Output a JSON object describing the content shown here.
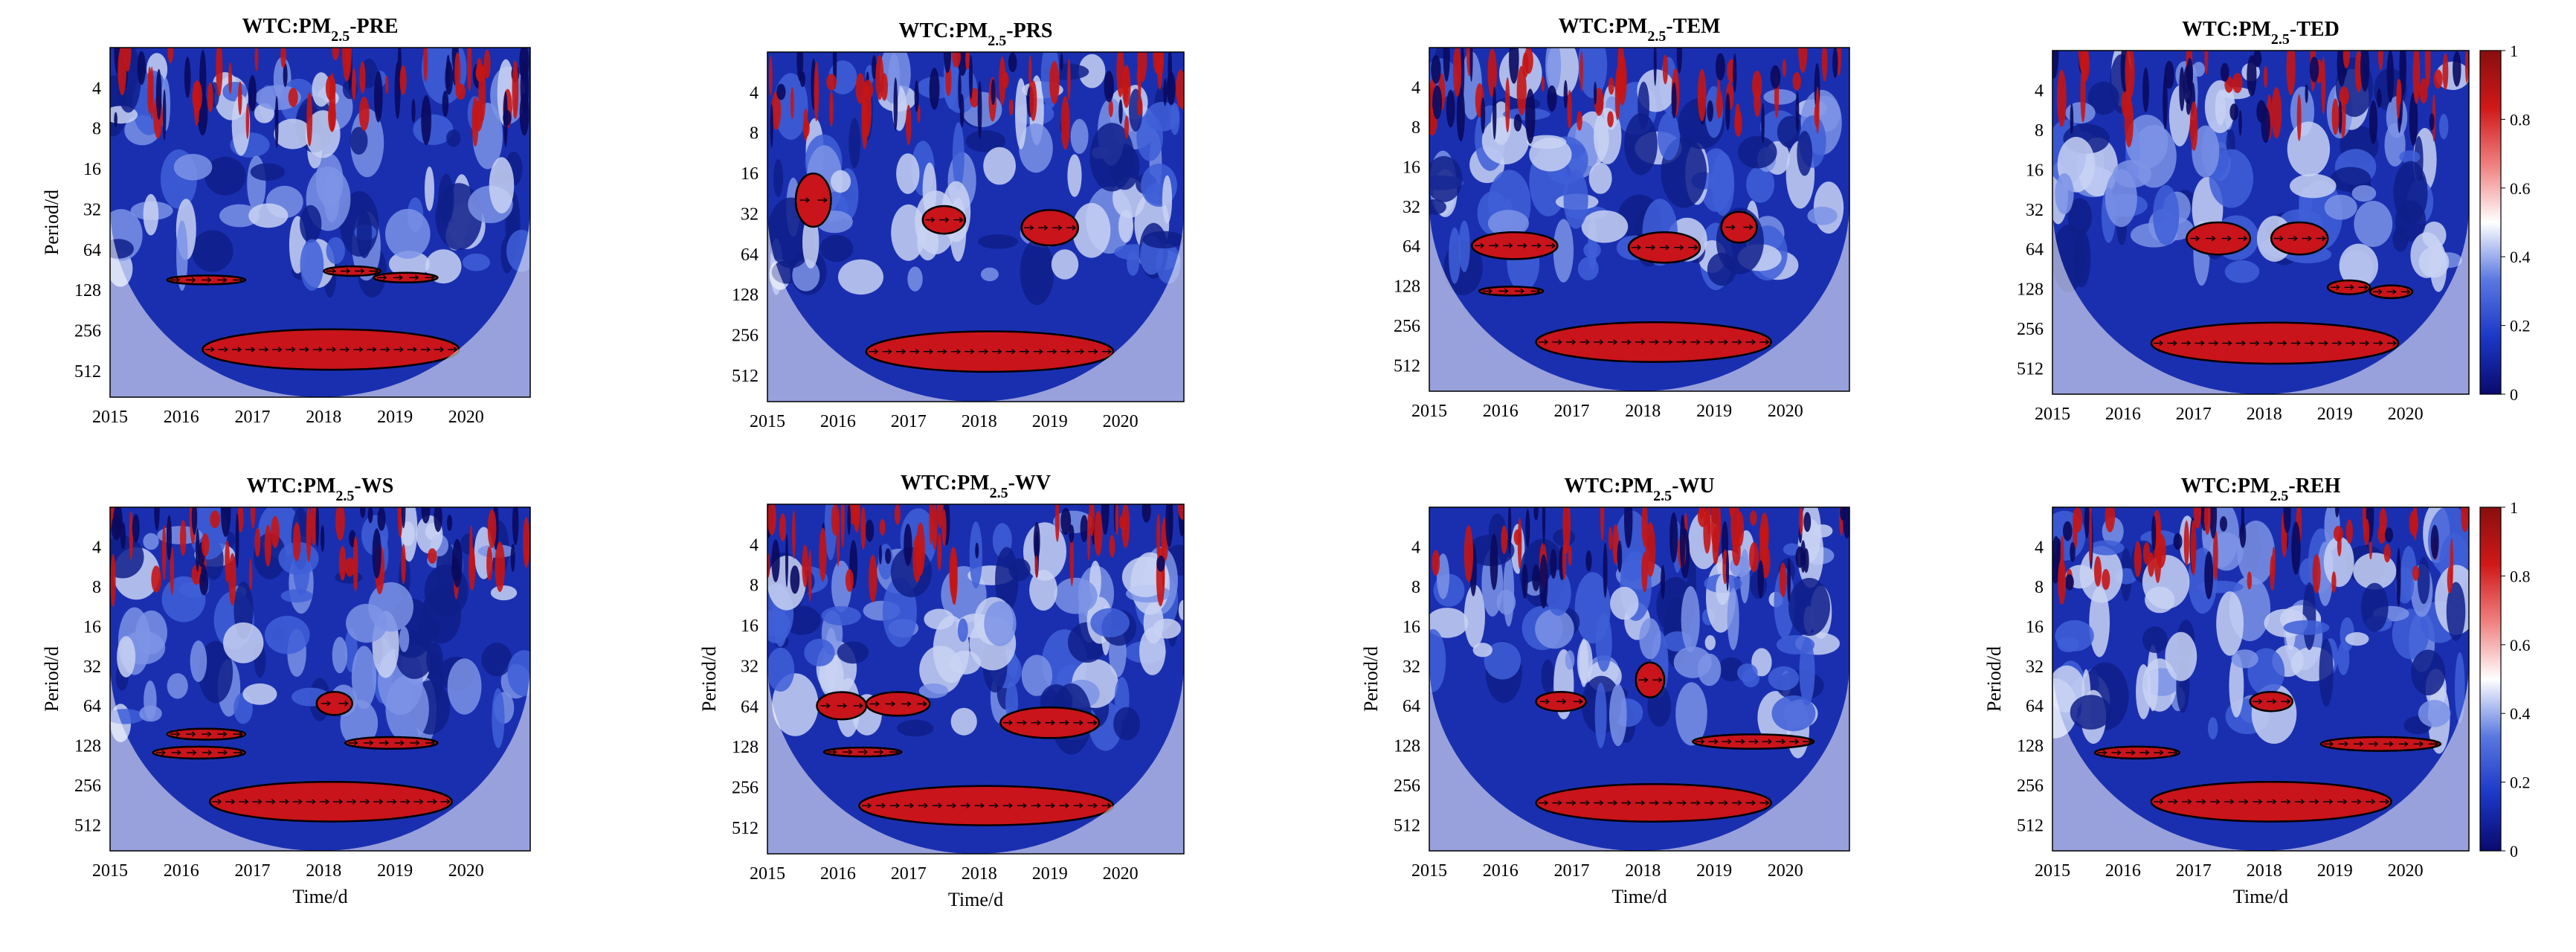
{
  "chart_data": [
    {
      "type": "heatmap",
      "title": "WTC:PM",
      "title_sub": "2.5",
      "title_suffix": "-PRE",
      "ylabel": "Period/d",
      "xlabel": "",
      "x_ticks": [
        "2015",
        "2016",
        "2017",
        "2018",
        "2019",
        "2020"
      ],
      "y_ticks": [
        "4",
        "8",
        "16",
        "32",
        "64",
        "128",
        "256",
        "512"
      ],
      "xlim": [
        2015,
        2020.9
      ],
      "ylim": [
        2,
        800
      ],
      "y_scale": "log2",
      "y_reversed": true,
      "significant_regions": [
        {
          "x": [
            2015.8,
            2016.9
          ],
          "y": [
            100,
            115
          ]
        },
        {
          "x": [
            2018.0,
            2018.8
          ],
          "y": [
            85,
            100
          ]
        },
        {
          "x": [
            2018.7,
            2019.6
          ],
          "y": [
            95,
            112
          ]
        },
        {
          "x": [
            2016.3,
            2019.9
          ],
          "y": [
            250,
            500
          ]
        }
      ]
    },
    {
      "type": "heatmap",
      "title": "WTC:PM",
      "title_sub": "2.5",
      "title_suffix": "-PRS",
      "ylabel": "",
      "xlabel": "",
      "x_ticks": [
        "2015",
        "2016",
        "2017",
        "2018",
        "2019",
        "2020"
      ],
      "y_ticks": [
        "4",
        "8",
        "16",
        "32",
        "64",
        "128",
        "256",
        "512"
      ],
      "xlim": [
        2015,
        2020.9
      ],
      "ylim": [
        2,
        800
      ],
      "y_scale": "log2",
      "y_reversed": true,
      "significant_regions": [
        {
          "x": [
            2015.4,
            2015.9
          ],
          "y": [
            16,
            40
          ]
        },
        {
          "x": [
            2017.2,
            2017.8
          ],
          "y": [
            28,
            45
          ]
        },
        {
          "x": [
            2018.6,
            2019.4
          ],
          "y": [
            30,
            55
          ]
        },
        {
          "x": [
            2016.4,
            2019.9
          ],
          "y": [
            240,
            480
          ]
        }
      ]
    },
    {
      "type": "heatmap",
      "title": "WTC:PM",
      "title_sub": "2.5",
      "title_suffix": "-TEM",
      "ylabel": "",
      "xlabel": "",
      "x_ticks": [
        "2015",
        "2016",
        "2017",
        "2018",
        "2019",
        "2020"
      ],
      "y_ticks": [
        "4",
        "8",
        "16",
        "32",
        "64",
        "128",
        "256",
        "512"
      ],
      "xlim": [
        2015,
        2020.9
      ],
      "ylim": [
        2,
        800
      ],
      "y_scale": "log2",
      "y_reversed": true,
      "significant_regions": [
        {
          "x": [
            2015.6,
            2016.8
          ],
          "y": [
            50,
            80
          ]
        },
        {
          "x": [
            2017.8,
            2018.8
          ],
          "y": [
            50,
            85
          ]
        },
        {
          "x": [
            2019.1,
            2019.6
          ],
          "y": [
            35,
            60
          ]
        },
        {
          "x": [
            2015.7,
            2016.6
          ],
          "y": [
            130,
            150
          ]
        },
        {
          "x": [
            2016.5,
            2019.8
          ],
          "y": [
            240,
            480
          ]
        }
      ]
    },
    {
      "type": "heatmap",
      "title": "WTC:PM",
      "title_sub": "2.5",
      "title_suffix": "-TED",
      "ylabel": "",
      "xlabel": "",
      "x_ticks": [
        "2015",
        "2016",
        "2017",
        "2018",
        "2019",
        "2020"
      ],
      "y_ticks": [
        "4",
        "8",
        "16",
        "32",
        "64",
        "128",
        "256",
        "512"
      ],
      "xlim": [
        2015,
        2020.9
      ],
      "ylim": [
        2,
        800
      ],
      "y_scale": "log2",
      "y_reversed": true,
      "significant_regions": [
        {
          "x": [
            2016.9,
            2017.8
          ],
          "y": [
            40,
            70
          ]
        },
        {
          "x": [
            2018.1,
            2018.9
          ],
          "y": [
            40,
            70
          ]
        },
        {
          "x": [
            2018.9,
            2019.5
          ],
          "y": [
            110,
            140
          ]
        },
        {
          "x": [
            2019.5,
            2020.1
          ],
          "y": [
            120,
            150
          ]
        },
        {
          "x": [
            2016.4,
            2019.9
          ],
          "y": [
            230,
            470
          ]
        }
      ]
    },
    {
      "type": "heatmap",
      "title": "WTC:PM",
      "title_sub": "2.5",
      "title_suffix": "-WS",
      "ylabel": "Period/d",
      "xlabel": "Time/d",
      "x_ticks": [
        "2015",
        "2016",
        "2017",
        "2018",
        "2019",
        "2020"
      ],
      "y_ticks": [
        "4",
        "8",
        "16",
        "32",
        "64",
        "128",
        "256",
        "512"
      ],
      "xlim": [
        2015,
        2020.9
      ],
      "ylim": [
        2,
        800
      ],
      "y_scale": "log2",
      "y_reversed": true,
      "significant_regions": [
        {
          "x": [
            2015.6,
            2016.9
          ],
          "y": [
            130,
            160
          ]
        },
        {
          "x": [
            2015.8,
            2016.9
          ],
          "y": [
            95,
            115
          ]
        },
        {
          "x": [
            2017.9,
            2018.4
          ],
          "y": [
            50,
            75
          ]
        },
        {
          "x": [
            2018.3,
            2019.6
          ],
          "y": [
            110,
            135
          ]
        },
        {
          "x": [
            2016.4,
            2019.8
          ],
          "y": [
            240,
            480
          ]
        }
      ]
    },
    {
      "type": "heatmap",
      "title": "WTC:PM",
      "title_sub": "2.5",
      "title_suffix": "-WV",
      "ylabel": "Period/d",
      "xlabel": "Time/d",
      "x_ticks": [
        "2015",
        "2016",
        "2017",
        "2018",
        "2019",
        "2020"
      ],
      "y_ticks": [
        "4",
        "8",
        "16",
        "32",
        "64",
        "128",
        "256",
        "512"
      ],
      "xlim": [
        2015,
        2020.9
      ],
      "ylim": [
        2,
        800
      ],
      "y_scale": "log2",
      "y_reversed": true,
      "significant_regions": [
        {
          "x": [
            2015.7,
            2016.4
          ],
          "y": [
            50,
            80
          ]
        },
        {
          "x": [
            2016.4,
            2017.3
          ],
          "y": [
            50,
            75
          ]
        },
        {
          "x": [
            2018.3,
            2019.7
          ],
          "y": [
            65,
            110
          ]
        },
        {
          "x": [
            2015.8,
            2016.9
          ],
          "y": [
            130,
            150
          ]
        },
        {
          "x": [
            2016.3,
            2019.9
          ],
          "y": [
            250,
            490
          ]
        }
      ]
    },
    {
      "type": "heatmap",
      "title": "WTC:PM",
      "title_sub": "2.5",
      "title_suffix": "-WU",
      "ylabel": "Period/d",
      "xlabel": "Time/d",
      "x_ticks": [
        "2015",
        "2016",
        "2017",
        "2018",
        "2019",
        "2020"
      ],
      "y_ticks": [
        "4",
        "8",
        "16",
        "32",
        "64",
        "128",
        "256",
        "512"
      ],
      "xlim": [
        2015,
        2020.9
      ],
      "ylim": [
        2,
        800
      ],
      "y_scale": "log2",
      "y_reversed": true,
      "significant_regions": [
        {
          "x": [
            2016.5,
            2017.2
          ],
          "y": [
            50,
            70
          ]
        },
        {
          "x": [
            2017.9,
            2018.3
          ],
          "y": [
            30,
            55
          ]
        },
        {
          "x": [
            2018.7,
            2020.4
          ],
          "y": [
            105,
            135
          ]
        },
        {
          "x": [
            2016.5,
            2019.8
          ],
          "y": [
            250,
            480
          ]
        }
      ]
    },
    {
      "type": "heatmap",
      "title": "WTC:PM",
      "title_sub": "2.5",
      "title_suffix": "-REH",
      "ylabel": "Period/d",
      "xlabel": "Time/d",
      "x_ticks": [
        "2015",
        "2016",
        "2017",
        "2018",
        "2019",
        "2020"
      ],
      "y_ticks": [
        "4",
        "8",
        "16",
        "32",
        "64",
        "128",
        "256",
        "512"
      ],
      "xlim": [
        2015,
        2020.9
      ],
      "ylim": [
        2,
        800
      ],
      "y_scale": "log2",
      "y_reversed": true,
      "significant_regions": [
        {
          "x": [
            2015.6,
            2016.8
          ],
          "y": [
            130,
            160
          ]
        },
        {
          "x": [
            2017.8,
            2018.4
          ],
          "y": [
            50,
            70
          ]
        },
        {
          "x": [
            2018.8,
            2020.5
          ],
          "y": [
            110,
            140
          ]
        },
        {
          "x": [
            2016.4,
            2019.8
          ],
          "y": [
            240,
            480
          ]
        }
      ]
    }
  ],
  "colorbars": [
    {
      "ticks": [
        "0",
        "0.2",
        "0.4",
        "0.6",
        "0.8",
        "1"
      ],
      "range": [
        0,
        1
      ],
      "colors": [
        "#0a0a6e",
        "#1b38c8",
        "#5a78e0",
        "#ffffff",
        "#f08080",
        "#d01818",
        "#8a0e0e"
      ]
    },
    {
      "ticks": [
        "0",
        "0.2",
        "0.4",
        "0.6",
        "0.8",
        "1"
      ],
      "range": [
        0,
        1
      ],
      "colors": [
        "#0a0a6e",
        "#1b38c8",
        "#5a78e0",
        "#ffffff",
        "#f08080",
        "#d01818",
        "#8a0e0e"
      ]
    }
  ]
}
